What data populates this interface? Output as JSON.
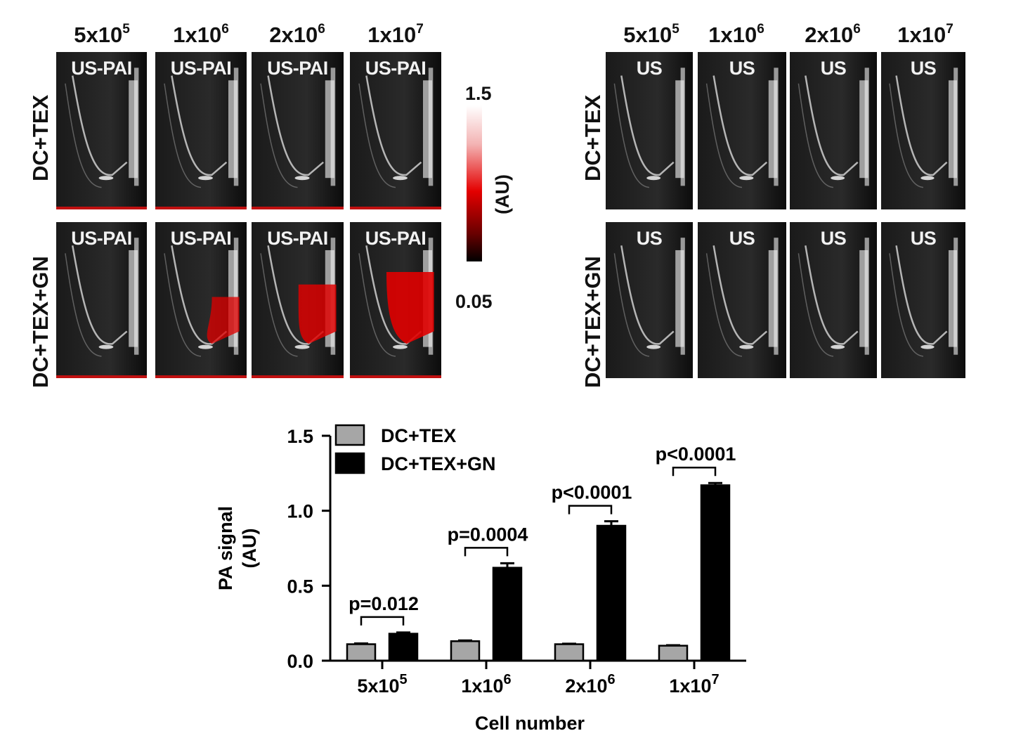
{
  "panels": {
    "columns": [
      "5x10^5",
      "1x10^6",
      "2x10^6",
      "1x10^7"
    ],
    "column_display": [
      {
        "base": "5x10",
        "exp": "5"
      },
      {
        "base": "1x10",
        "exp": "6"
      },
      {
        "base": "2x10",
        "exp": "6"
      },
      {
        "base": "1x10",
        "exp": "7"
      }
    ],
    "rows": [
      "DC+TEX",
      "DC+TEX+GN"
    ],
    "left_tile_label": "US-PAI",
    "right_tile_label": "US",
    "pa_overlay_level": [
      [
        0,
        0,
        0,
        0
      ],
      [
        0,
        0.6,
        0.8,
        1.0
      ]
    ]
  },
  "colorbar": {
    "max": "1.5",
    "min": "0.05",
    "unit": "(AU)",
    "colors": [
      "#ffffff",
      "#e40000",
      "#000000"
    ]
  },
  "chart_data": {
    "type": "bar",
    "categories": [
      "5x10^5",
      "1x10^6",
      "2x10^6",
      "1x10^7"
    ],
    "category_display": [
      {
        "base": "5x10",
        "exp": "5"
      },
      {
        "base": "1x10",
        "exp": "6"
      },
      {
        "base": "2x10",
        "exp": "6"
      },
      {
        "base": "1x10",
        "exp": "7"
      }
    ],
    "series": [
      {
        "name": "DC+TEX",
        "values": [
          0.11,
          0.13,
          0.11,
          0.1
        ],
        "errors": [
          0.005,
          0.005,
          0.003,
          0.003
        ],
        "color": "#a6a6a6"
      },
      {
        "name": "DC+TEX+GN",
        "values": [
          0.18,
          0.62,
          0.9,
          1.17
        ],
        "errors": [
          0.008,
          0.03,
          0.03,
          0.015
        ],
        "color": "#000000"
      }
    ],
    "annotations": [
      "p=0.012",
      "p=0.0004",
      "p<0.0001",
      "p<0.0001"
    ],
    "xlabel": "Cell number",
    "ylabel_lines": [
      "PA signal",
      "(AU)"
    ],
    "ylim": [
      0,
      1.5
    ],
    "yticks": [
      "0.0",
      "0.5",
      "1.0",
      "1.5"
    ],
    "ytick_values": [
      0,
      0.5,
      1.0,
      1.5
    ],
    "legend_position": "top-left",
    "grid": false
  }
}
